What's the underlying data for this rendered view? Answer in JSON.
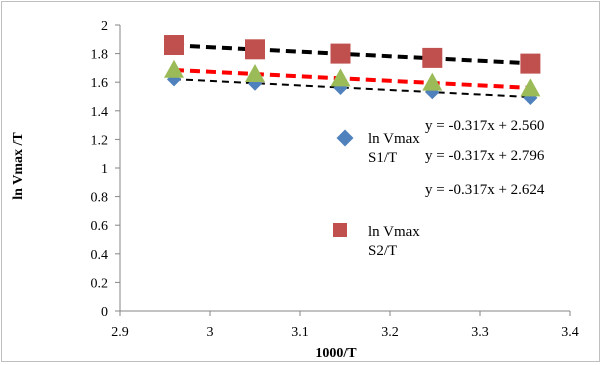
{
  "chart_data": {
    "type": "scatter",
    "xlabel": "1000/T",
    "ylabel": "ln Vmax /T",
    "xlim": [
      2.9,
      3.4
    ],
    "ylim": [
      0,
      2
    ],
    "x_ticks": [
      "2.9",
      "3",
      "3.1",
      "3.2",
      "3.3",
      "3.4"
    ],
    "y_ticks": [
      "0",
      "0.2",
      "0.4",
      "0.6",
      "0.8",
      "1",
      "1.2",
      "1.4",
      "1.6",
      "1.8",
      "2"
    ],
    "grid": false,
    "legend_position": "right",
    "series": [
      {
        "name": "ln Vmax S1/T",
        "legend_lines": [
          "ln Vmax",
          "S1/T"
        ],
        "marker": "diamond",
        "color": "#4f81bd",
        "x": [
          2.96,
          3.05,
          3.145,
          3.247,
          3.356
        ],
        "y": [
          1.62,
          1.59,
          1.56,
          1.53,
          1.49
        ],
        "trendline": {
          "slope": -0.317,
          "intercept": 2.56,
          "color": "#000000",
          "width": 2
        }
      },
      {
        "name": "ln Vmax S2/T",
        "legend_lines": [
          "ln Vmax",
          "S2/T"
        ],
        "marker": "square",
        "color": "#c0504d",
        "x": [
          2.96,
          3.05,
          3.145,
          3.247,
          3.356
        ],
        "y": [
          1.86,
          1.83,
          1.8,
          1.77,
          1.73
        ],
        "trendline": {
          "slope": -0.317,
          "intercept": 2.796,
          "color": "#000000",
          "width": 4
        }
      },
      {
        "name": "",
        "marker": "triangle",
        "color": "#9bbb59",
        "x": [
          2.96,
          3.05,
          3.145,
          3.247,
          3.356
        ],
        "y": [
          1.68,
          1.65,
          1.62,
          1.59,
          1.55
        ],
        "trendline": {
          "slope": -0.317,
          "intercept": 2.624,
          "color": "#ff0000",
          "width": 4
        }
      }
    ],
    "equations": [
      "y = -0.317x + 2.560",
      "y = -0.317x + 2.796",
      "y = -0.317x + 2.624"
    ]
  }
}
